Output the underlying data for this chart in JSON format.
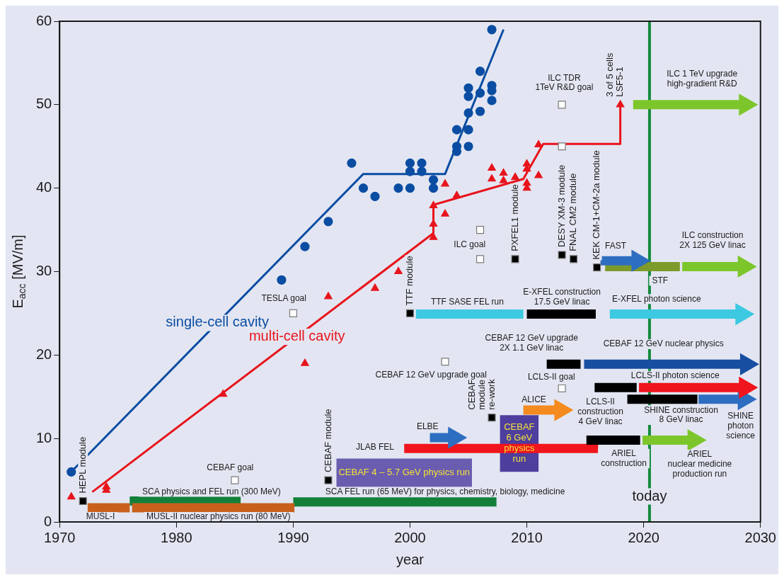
{
  "chart_data": {
    "type": "line",
    "xlabel": "year",
    "ylabel": "E$_{acc}$ [MV/m]",
    "xlim": [
      1970,
      2030
    ],
    "xticks": [
      1970,
      1980,
      1990,
      2000,
      2010,
      2020,
      2030
    ],
    "ylim": [
      0,
      60
    ],
    "yticks": [
      0,
      10,
      20,
      30,
      40,
      50,
      60
    ],
    "ref_lines": [
      {
        "axis": "x",
        "value": 2020.5,
        "label": "today",
        "color": "#148a3d"
      }
    ],
    "series": [
      {
        "name": "CEBAF 4 – 5.7 GeV physics run",
        "color": "#6a5caf",
        "x": [
          1993.7,
          2005.3
        ],
        "values": [
          5.9,
          5.9
        ]
      },
      {
        "name": "CEBAF\n6 GeV\nphysics\nrun",
        "color": "#4e3e9e",
        "x": [
          2007.7,
          2011
        ],
        "values": [
          9.4,
          9.4
        ]
      },
      {
        "color": "#13803a",
        "marker": "none",
        "x": [
          1976,
          1985.5
        ],
        "values": [
          2.5,
          2.5
        ]
      },
      {
        "color": "#13803a",
        "marker": "none",
        "x": [
          1990,
          2007.4
        ],
        "values": [
          2.4,
          2.4
        ]
      },
      {
        "color": "#c8601c",
        "marker": "none",
        "x": [
          1972.4,
          1976
        ],
        "values": [
          1.7,
          1.7
        ]
      },
      {
        "color": "#c8601c",
        "marker": "none",
        "x": [
          1976.2,
          1990.1
        ],
        "values": [
          1.7,
          1.7
        ]
      },
      {
        "color": "#f0141c",
        "marker": "none",
        "x": [
          1999.5,
          2016.1
        ],
        "values": [
          8.8,
          8.8
        ]
      },
      {
        "color": "#2d6ec0",
        "marker": "triangle",
        "x": [
          2001.7,
          2003.8
        ],
        "values": [
          10.1,
          10.1
        ]
      },
      {
        "color": "#f58a1f",
        "marker": "triangle",
        "x": [
          2009.7,
          2012.9
        ],
        "values": [
          13.4,
          13.4
        ]
      },
      {
        "color": "#3cc9e1",
        "marker": "none",
        "x": [
          2000.5,
          2009.7
        ],
        "values": [
          24.9,
          24.9
        ]
      },
      {
        "color": "#000000",
        "marker": "none",
        "x": [
          2010,
          2015.9
        ],
        "values": [
          24.9,
          24.9
        ]
      },
      {
        "color": "#3cc9e1",
        "marker": "triangle",
        "x": [
          2017.1,
          2028.4
        ],
        "values": [
          24.9,
          24.9
        ]
      },
      {
        "color": "#000000",
        "marker": "none",
        "x": [
          2011.7,
          2014.6
        ],
        "values": [
          18.9,
          18.9
        ]
      },
      {
        "color": "#174ea1",
        "marker": "triangle",
        "x": [
          2014.9,
          2028.8
        ],
        "values": [
          18.9,
          18.9
        ]
      },
      {
        "color": "#000000",
        "marker": "none",
        "x": [
          2015.8,
          2019.4
        ],
        "values": [
          16.1,
          16.1
        ]
      },
      {
        "color": "#2d6ec0",
        "marker": "triangle",
        "x": [
          2024.7,
          2028.6
        ],
        "values": [
          14.7,
          14.7
        ]
      },
      {
        "color": "#f0141c",
        "marker": "triangle",
        "x": [
          2019.6,
          2028.7
        ],
        "values": [
          16.1,
          16.1
        ]
      },
      {
        "color": "#000000",
        "marker": "none",
        "x": [
          2018.6,
          2024.6
        ],
        "values": [
          14.7,
          14.7
        ]
      },
      {
        "color": "#000000",
        "marker": "none",
        "x": [
          2015.1,
          2019.7
        ],
        "values": [
          9.8,
          9.8
        ]
      },
      {
        "color": "#7cc62c",
        "marker": "triangle",
        "x": [
          2019.9,
          2024.3
        ],
        "values": [
          9.8,
          9.8
        ]
      },
      {
        "color": "#7d9b2b",
        "marker": "none",
        "x": [
          2016.7,
          2023.1
        ],
        "values": [
          30.6,
          30.6
        ]
      },
      {
        "color": "#2d6ec0",
        "marker": "triangle",
        "x": [
          2016.3,
          2019.5
        ],
        "values": [
          31.3,
          31.3
        ]
      },
      {
        "color": "#7cc62c",
        "marker": "triangle",
        "x": [
          2023.3,
          2028.6
        ],
        "values": [
          30.6,
          30.6
        ]
      },
      {
        "color": "#7cc62c",
        "marker": "triangle",
        "x": [
          2019.1,
          2028.7
        ],
        "values": [
          50,
          50
        ]
      },
      {
        "name": "single-cell cavity",
        "color": "#0a4da2",
        "marker": "none",
        "x": [
          1971,
          1996,
          2003,
          2008
        ],
        "values": [
          6,
          41.7,
          41.7,
          59
        ]
      },
      {
        "name": "multi-cell cavity",
        "color": "#e8141c",
        "marker": "none",
        "x": [
          1972.8,
          2002,
          2002,
          2009.7,
          2011.4,
          2018,
          2018
        ],
        "values": [
          3.6,
          34.6,
          38,
          41.1,
          45.3,
          45.3,
          50
        ]
      },
      {
        "type": "scatter",
        "color": "#0a4da2",
        "marker": "circle",
        "x": [
          1971,
          1989,
          1991,
          1993,
          1995,
          1996,
          1997,
          1999,
          2000,
          2000,
          2000,
          2001,
          2001,
          2002,
          2002,
          2004,
          2004,
          2004,
          2005,
          2005,
          2005,
          2005,
          2005,
          2006,
          2006,
          2006,
          2007,
          2007,
          2007,
          2007
        ],
        "values": [
          6,
          29,
          33,
          36,
          43,
          40,
          39,
          40,
          43,
          42,
          40,
          43,
          42,
          41,
          40,
          47,
          45,
          44.4,
          52,
          51,
          49,
          47,
          45,
          54,
          51.4,
          49.2,
          59,
          52.3,
          51.7,
          50.5
        ]
      },
      {
        "type": "scatter",
        "color": "#e8141c",
        "marker": "triangle",
        "x": [
          1971,
          1974,
          1974,
          1984,
          1991,
          1993,
          1997,
          1999,
          2002,
          2002,
          2002,
          2003,
          2003,
          2004,
          2007,
          2007,
          2008,
          2008,
          2009,
          2010,
          2010,
          2010,
          2010,
          2011,
          2011,
          2018
        ],
        "values": [
          3,
          3.8,
          4.2,
          15.3,
          19,
          27,
          28,
          30,
          34.1,
          35.7,
          37.9,
          40.5,
          36.9,
          39.1,
          42.4,
          41.1,
          41.8,
          40.9,
          41.3,
          42.9,
          42.3,
          40.6,
          40,
          41.5,
          45.2,
          50
        ],
        "value_labels": [
          null,
          null,
          null,
          null,
          null,
          null,
          null,
          null,
          null,
          null,
          null,
          null,
          null,
          null,
          null,
          null,
          null,
          null,
          null,
          null,
          null,
          null,
          null,
          null,
          null,
          "3 of 5 cells\nLSF5-1"
        ]
      },
      {
        "type": "scatter",
        "color": "#ffffff",
        "marker": "square",
        "x": [
          1985,
          1990,
          2003,
          2006,
          2006,
          2013,
          2013,
          2013
        ],
        "values": [
          5,
          25,
          19.2,
          35,
          31.5,
          50,
          45,
          16
        ]
      },
      {
        "type": "scatter",
        "color": "#000000",
        "marker": "square",
        "x": [
          1972,
          1993,
          2000,
          2007,
          2009,
          2013,
          2014,
          2016
        ],
        "values": [
          2.5,
          5,
          25,
          12.5,
          31.5,
          32,
          31.5,
          30.5
        ],
        "value_labels": [
          "HEPL module",
          "CEBAF module",
          "TTF module",
          "CEBAF\nmodule\nre-work",
          "PXFEL1 module",
          "DESY XM-3 module",
          "FNAL CM2 module",
          "KEK CM-1+CM-2a module"
        ]
      }
    ],
    "annotations": [
      "TESLA goal",
      "CEBAF goal",
      "CEBAF 12 GeV upgrade goal",
      "ILC goal",
      "ILC TDR\n1TeV R&D goal",
      "LCLS-II goal",
      "ILC 1 TeV upgrade\nhigh-gradient R&D",
      "ILC construction\n2X 125 GeV linac",
      "FAST",
      "STF",
      "TTF SASE FEL run",
      "E-XFEL construction\n17.5 GeV linac",
      "E-XFEL photon science",
      "CEBAF 12 GeV upgrade\n2X 1.1 GeV linac",
      "CEBAF 12 GeV nuclear physics",
      "LCLS-II photon science",
      "ALICE",
      "LCLS-II\nconstruction\n4 GeV linac",
      "SHINE construction\n8 GeV linac",
      "SHINE\nphoton\nscience",
      "ELBE",
      "JLAB FEL",
      "ARIEL\nconstruction",
      "ARIEL\nnuclear medicine\nproduction run",
      "SCA physics and FEL run (300 MeV)",
      "SCA FEL run (65 MeV) for physics, chemistry, biology, medicine",
      "MUSL-I",
      "MUSL-II nuclear physics run (80 MeV)"
    ]
  }
}
